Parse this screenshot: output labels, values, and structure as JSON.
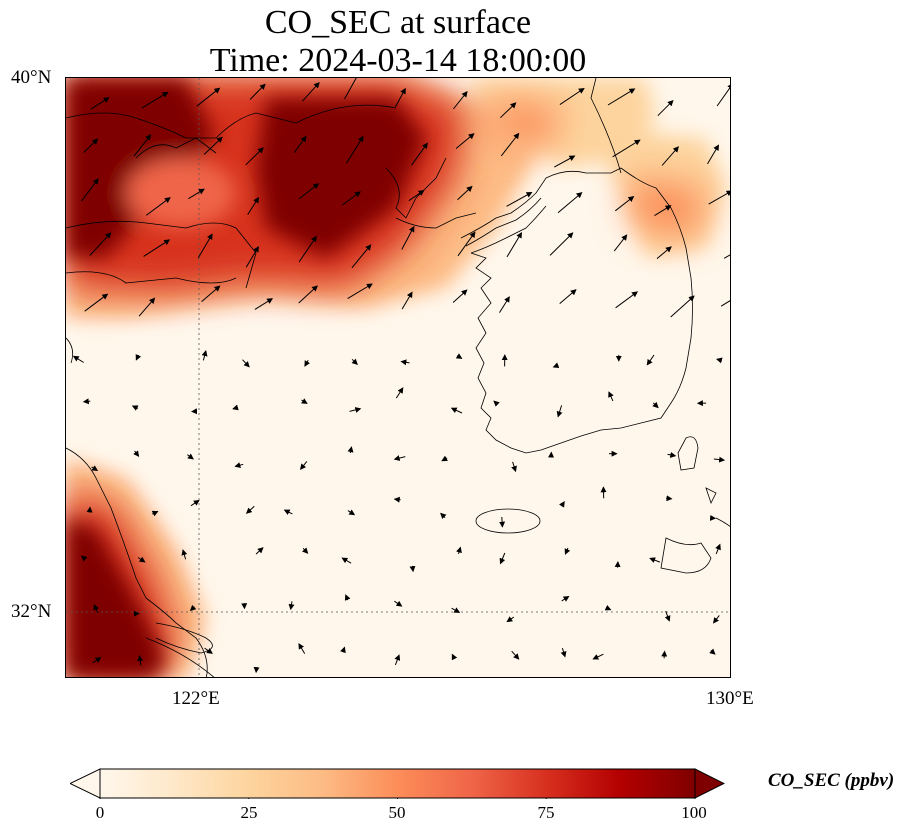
{
  "title": {
    "line1": "CO_SEC at surface",
    "line2": "Time: 2024-03-14 18:00:00"
  },
  "map": {
    "extent": {
      "lon_min": 119.6,
      "lon_max": 130.0,
      "lat_min": 30.95,
      "lat_max": 40.0
    },
    "lat_ticks": [
      "40°N",
      "32°N"
    ],
    "lon_ticks": [
      "122°E",
      "130°E"
    ],
    "gridlines": {
      "lon": 122,
      "lat": 32,
      "style": "dotted"
    },
    "field": "CO_SEC",
    "overlay": "wind vectors"
  },
  "colorbar": {
    "label": "CO_SEC (ppbv)",
    "ticks": [
      "0",
      "25",
      "50",
      "75",
      "100"
    ],
    "min": 0,
    "max": 100,
    "colormap": "OrRd",
    "colors": [
      "#fff7ec",
      "#fee8c8",
      "#fdd49e",
      "#fdbb84",
      "#fc8d59",
      "#ef6548",
      "#d7301f",
      "#b30000",
      "#7f0000"
    ],
    "extend": "both"
  }
}
